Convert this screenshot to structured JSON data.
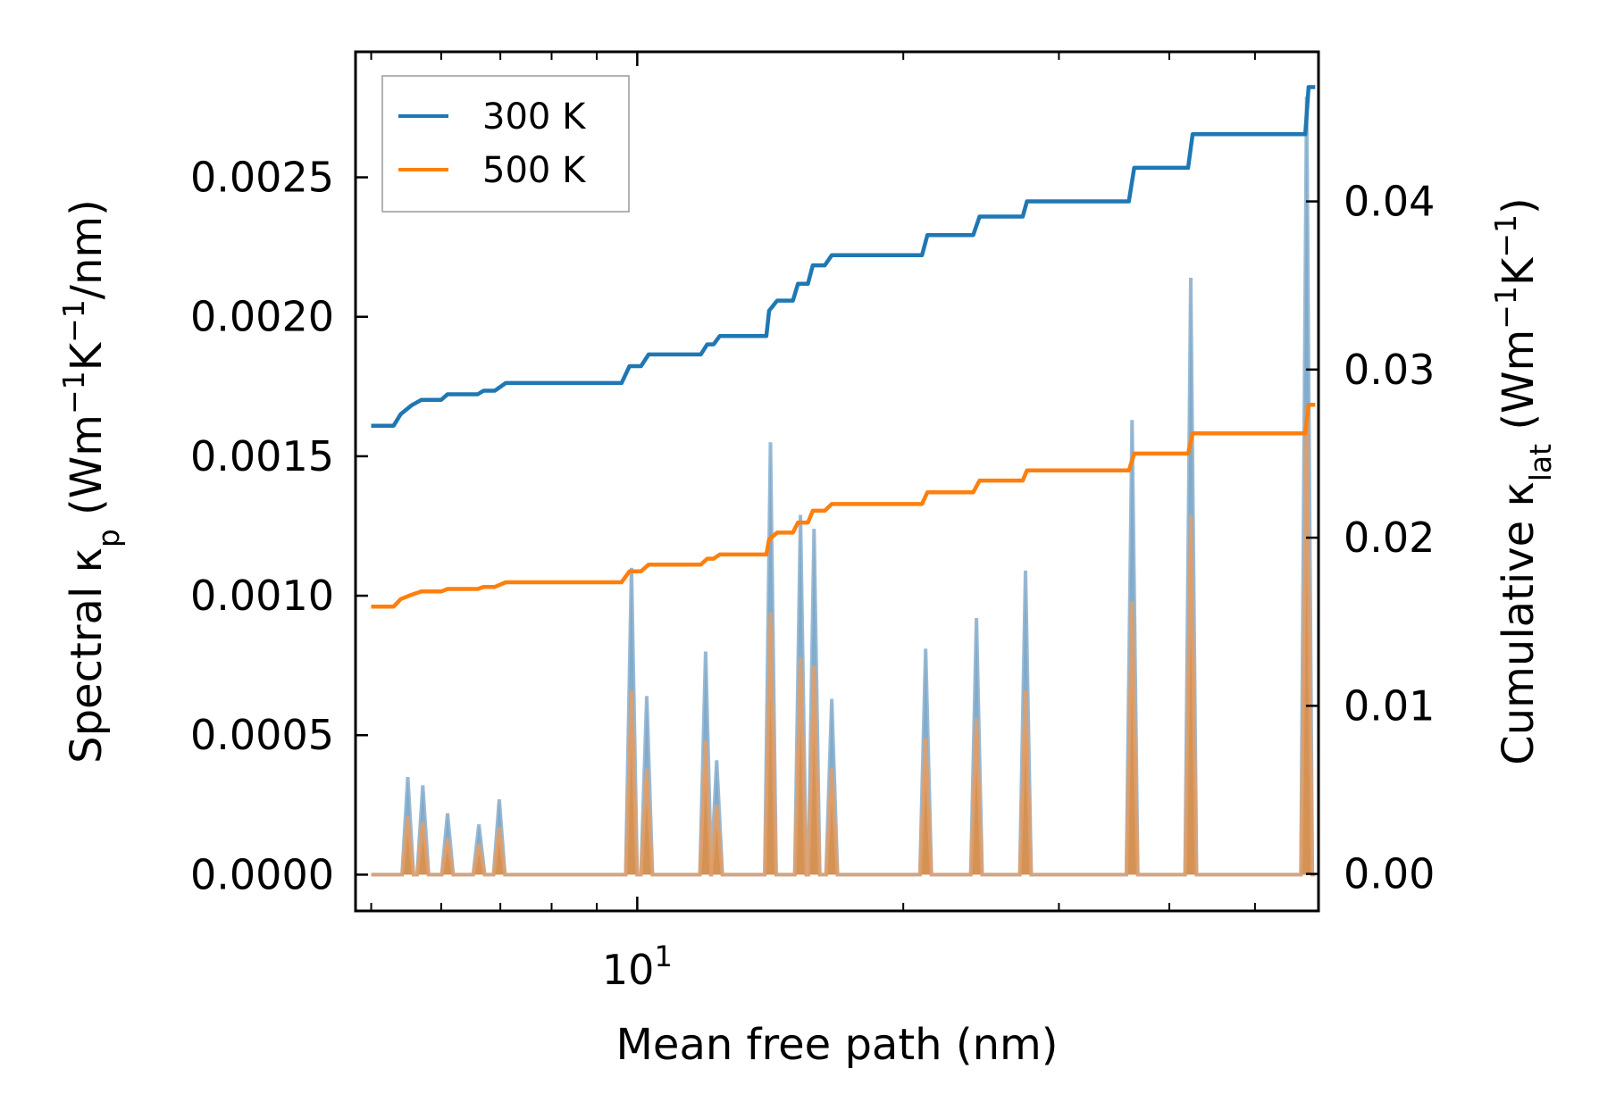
{
  "chart_data": {
    "type": "line",
    "title": "",
    "x_scale": "log",
    "xlim": [
      4.8,
      59.0
    ],
    "x_tick_major": 10,
    "x_tick_major_label": {
      "base": "10",
      "exponent": "1"
    },
    "x_minor_ticks": [
      5,
      6,
      7,
      8,
      9,
      20,
      30,
      40,
      50
    ],
    "xlabel": "Mean free path (nm)",
    "left_axis": {
      "ylim": [
        -0.00013,
        0.00295
      ],
      "ticks": [
        0.0,
        0.0005,
        0.001,
        0.0015,
        0.002,
        0.0025
      ],
      "tick_labels": [
        "0.0000",
        "0.0005",
        "0.0010",
        "0.0015",
        "0.0020",
        "0.0025"
      ],
      "ylabel": {
        "parts": [
          {
            "text": "Spectral κ"
          },
          {
            "text": "p",
            "sub": true
          },
          {
            "text": " (Wm"
          },
          {
            "text": "−1",
            "sup": true
          },
          {
            "text": "K"
          },
          {
            "text": "−1",
            "sup": true
          },
          {
            "text": "/nm)"
          }
        ]
      }
    },
    "right_axis": {
      "ylim": [
        -0.0022,
        0.0489
      ],
      "ticks": [
        0.0,
        0.01,
        0.02,
        0.03,
        0.04
      ],
      "tick_labels": [
        "0.00",
        "0.01",
        "0.02",
        "0.03",
        "0.04"
      ],
      "ylabel": {
        "parts": [
          {
            "text": "Cumulative κ"
          },
          {
            "text": "lat",
            "sub": true
          },
          {
            "text": " (Wm"
          },
          {
            "text": "−1",
            "sup": true
          },
          {
            "text": "K"
          },
          {
            "text": "−1",
            "sup": true
          },
          {
            "text": ")"
          }
        ]
      }
    },
    "legend": {
      "position": "top-left",
      "entries": [
        "300 K",
        "500 K"
      ]
    },
    "series": [
      {
        "name": "300 K",
        "color": "#1f77b4",
        "cumulative": [
          [
            5.0,
            0.02666
          ],
          [
            5.3,
            0.02666
          ],
          [
            5.4,
            0.02735
          ],
          [
            5.55,
            0.02786
          ],
          [
            5.7,
            0.0282
          ],
          [
            6.0,
            0.0282
          ],
          [
            6.1,
            0.02853
          ],
          [
            6.6,
            0.02853
          ],
          [
            6.7,
            0.02874
          ],
          [
            6.9,
            0.02874
          ],
          [
            7.1,
            0.0292
          ],
          [
            9.6,
            0.0292
          ],
          [
            9.8,
            0.0302
          ],
          [
            10.1,
            0.0302
          ],
          [
            10.3,
            0.0309
          ],
          [
            11.8,
            0.0309
          ],
          [
            12.0,
            0.0315
          ],
          [
            12.2,
            0.0315
          ],
          [
            12.4,
            0.032
          ],
          [
            14.0,
            0.032
          ],
          [
            14.1,
            0.0335
          ],
          [
            14.4,
            0.0341
          ],
          [
            15.0,
            0.0341
          ],
          [
            15.2,
            0.0351
          ],
          [
            15.6,
            0.0351
          ],
          [
            15.8,
            0.0362
          ],
          [
            16.3,
            0.0362
          ],
          [
            16.6,
            0.0368
          ],
          [
            21.0,
            0.0368
          ],
          [
            21.3,
            0.038
          ],
          [
            24.0,
            0.038
          ],
          [
            24.4,
            0.0391
          ],
          [
            27.3,
            0.0391
          ],
          [
            27.6,
            0.04
          ],
          [
            36.0,
            0.04
          ],
          [
            36.5,
            0.042
          ],
          [
            42.0,
            0.042
          ],
          [
            42.5,
            0.044
          ],
          [
            57.0,
            0.044
          ],
          [
            57.5,
            0.0468
          ],
          [
            58.5,
            0.0468
          ]
        ],
        "spectral_peaks": [
          [
            5.5,
            0.00035
          ],
          [
            5.72,
            0.00032
          ],
          [
            6.1,
            0.00022
          ],
          [
            6.62,
            0.00018
          ],
          [
            6.98,
            0.00027
          ],
          [
            9.85,
            0.0011
          ],
          [
            10.25,
            0.00064
          ],
          [
            11.95,
            0.0008
          ],
          [
            12.3,
            0.00041
          ],
          [
            14.15,
            0.00155
          ],
          [
            15.3,
            0.00129
          ],
          [
            15.85,
            0.00124
          ],
          [
            16.6,
            0.00063
          ],
          [
            21.2,
            0.00081
          ],
          [
            24.2,
            0.00092
          ],
          [
            27.5,
            0.00109
          ],
          [
            36.3,
            0.00163
          ],
          [
            42.3,
            0.00214
          ],
          [
            57.2,
            0.00279
          ]
        ]
      },
      {
        "name": "500 K",
        "color": "#ff7f0e",
        "cumulative": [
          [
            5.0,
            0.0159
          ],
          [
            5.3,
            0.0159
          ],
          [
            5.4,
            0.01635
          ],
          [
            5.55,
            0.0166
          ],
          [
            5.7,
            0.0168
          ],
          [
            6.0,
            0.0168
          ],
          [
            6.1,
            0.01695
          ],
          [
            6.6,
            0.01695
          ],
          [
            6.7,
            0.01707
          ],
          [
            6.9,
            0.01707
          ],
          [
            7.1,
            0.01735
          ],
          [
            9.6,
            0.01735
          ],
          [
            9.8,
            0.018
          ],
          [
            10.1,
            0.018
          ],
          [
            10.3,
            0.0184
          ],
          [
            11.8,
            0.0184
          ],
          [
            12.0,
            0.01875
          ],
          [
            12.2,
            0.01875
          ],
          [
            12.4,
            0.019
          ],
          [
            14.0,
            0.019
          ],
          [
            14.1,
            0.0199
          ],
          [
            14.4,
            0.0203
          ],
          [
            15.0,
            0.0203
          ],
          [
            15.2,
            0.0209
          ],
          [
            15.6,
            0.0209
          ],
          [
            15.8,
            0.0216
          ],
          [
            16.3,
            0.0216
          ],
          [
            16.6,
            0.022
          ],
          [
            21.0,
            0.022
          ],
          [
            21.3,
            0.0227
          ],
          [
            24.0,
            0.0227
          ],
          [
            24.4,
            0.0234
          ],
          [
            27.3,
            0.0234
          ],
          [
            27.6,
            0.024
          ],
          [
            36.0,
            0.024
          ],
          [
            36.5,
            0.025
          ],
          [
            42.0,
            0.025
          ],
          [
            42.5,
            0.0262
          ],
          [
            57.0,
            0.0262
          ],
          [
            57.5,
            0.0279
          ],
          [
            58.5,
            0.0279
          ]
        ],
        "spectral_peaks": [
          [
            5.5,
            0.00021
          ],
          [
            5.72,
            0.00019
          ],
          [
            6.1,
            0.00013
          ],
          [
            6.62,
            0.00011
          ],
          [
            6.98,
            0.00017
          ],
          [
            9.85,
            0.00066
          ],
          [
            10.25,
            0.00038
          ],
          [
            11.95,
            0.00048
          ],
          [
            12.3,
            0.00025
          ],
          [
            14.15,
            0.00094
          ],
          [
            15.3,
            0.00078
          ],
          [
            15.85,
            0.00075
          ],
          [
            16.6,
            0.00038
          ],
          [
            21.2,
            0.00049
          ],
          [
            24.2,
            0.00056
          ],
          [
            27.5,
            0.00066
          ],
          [
            36.3,
            0.00098
          ],
          [
            42.3,
            0.00129
          ],
          [
            57.2,
            0.00167
          ]
        ]
      }
    ]
  }
}
